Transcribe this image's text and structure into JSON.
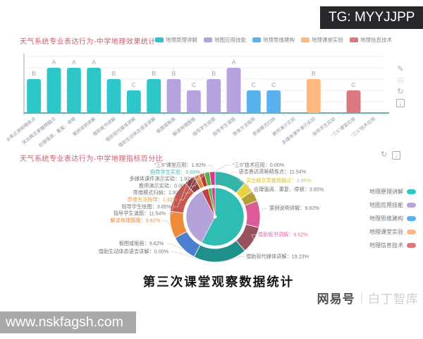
{
  "watermarks": {
    "tg": "TG: MYYJJPP",
    "site": "www.nskfagsh.com",
    "brand_primary": "网易号",
    "brand_divider": "|",
    "brand_secondary": "白丁智库"
  },
  "caption": "第三次课堂观察数据统计",
  "icons": {
    "edit": "✎",
    "data_view": "▤",
    "refresh": "↻",
    "save_arrow": "↓"
  },
  "bar_section": {
    "title": "天气系统专业表达行为-中学地理效果统计"
  },
  "pie_section": {
    "title": "天气系统专业表达行为-中学地理指标百分比"
  },
  "legend": [
    {
      "label": "地理原理讲解",
      "color": "#2ec7c9"
    },
    {
      "label": "地图应用技能",
      "color": "#b6a2de"
    },
    {
      "label": "地理思维建构",
      "color": "#5ab1ef"
    },
    {
      "label": "地理课堂实验",
      "color": "#ffb980"
    },
    {
      "label": "地理信息技术",
      "color": "#d87a80"
    }
  ],
  "chart_data": [
    {
      "type": "bar",
      "title": "天气系统专业表达行为-中学地理效果统计",
      "xlabel": "",
      "ylabel": "",
      "ylim": [
        0,
        5
      ],
      "grid": true,
      "legend_position": "top",
      "grade_scale": {
        "A": 4,
        "B": 3,
        "C": 2
      },
      "categories": [
        "语言表达清晰精炼点",
        "突出概念掌握精髓点",
        "合理强调、重复、停顿",
        "案例说明讲解",
        "借助板书讲解",
        "借助现代媒体讲解",
        "借助生动体态语言讲解",
        "板图或板画",
        "解读地理图像",
        "指导学生绘图",
        "指导学生读图",
        "思维方法指导",
        "思维模式归纳",
        "教师演示实验",
        "多媒体课件演示实验",
        "指导学生实验",
        "“三S”课堂应用",
        "“三S”技术应用"
      ],
      "grades": [
        "B",
        "A",
        "A",
        "A",
        "B",
        "C",
        "B",
        "B",
        "C",
        "B",
        "A",
        "C",
        "C",
        null,
        "B",
        null,
        "C",
        null
      ],
      "values": [
        3,
        4,
        4,
        4,
        3,
        2,
        3,
        3,
        2,
        3,
        4,
        2,
        2,
        0,
        3,
        0,
        2,
        0
      ],
      "colors": [
        "#2ec7c9",
        "#2ec7c9",
        "#2ec7c9",
        "#2ec7c9",
        "#2ec7c9",
        "#2ec7c9",
        "#2ec7c9",
        "#b6a2de",
        "#b6a2de",
        "#b6a2de",
        "#b6a2de",
        "#5ab1ef",
        "#5ab1ef",
        "#ffb980",
        "#ffb980",
        "#ffb980",
        "#d87a80",
        "#d87a80"
      ]
    },
    {
      "type": "pie",
      "title": "天气系统专业表达行为-中学地理指标百分比",
      "legend_position": "right",
      "slices": [
        {
          "label": "语言表达清晰精炼点",
          "value": 11.54,
          "display": "11.54%",
          "color": "#35b5a9",
          "label_color": "#757575"
        },
        {
          "label": "突出概念掌握精髓点",
          "value": 3.85,
          "display": "3.85%",
          "color": "#e6d33d",
          "label_color": "#d9c52f"
        },
        {
          "label": "合理强调、重复、停顿",
          "value": 3.85,
          "display": "3.85%",
          "color": "#b0a135",
          "label_color": "#757575"
        },
        {
          "label": "案例说明讲解",
          "value": 9.62,
          "display": "9.62%",
          "color": "#de5b9a",
          "label_color": "#757575"
        },
        {
          "label": "借助板书讲解",
          "value": 9.62,
          "display": "9.62%",
          "color": "#97525e",
          "label_color": "#e06ba8"
        },
        {
          "label": "借助现代媒体讲解",
          "value": 19.23,
          "display": "19.23%",
          "color": "#1f8f89",
          "label_color": "#757575"
        },
        {
          "label": "借助生动体态语言讲解",
          "value": 0,
          "display": "0.00%",
          "color": "#2ec7c9",
          "label_color": "#757575"
        },
        {
          "label": "板图或板画",
          "value": 9.62,
          "display": "9.62%",
          "color": "#4d7fd0",
          "label_color": "#757575"
        },
        {
          "label": "解读地理图像",
          "value": 9.62,
          "display": "9.62%",
          "color": "#ef8a3a",
          "label_color": "#ef8a3a"
        },
        {
          "label": "指导学生读图",
          "value": 11.54,
          "display": "11.54%",
          "color": "#c9574f",
          "label_color": "#757575"
        },
        {
          "label": "指导学生绘图",
          "value": 3.85,
          "display": "3.85%",
          "color": "#8e3d43",
          "label_color": "#757575"
        },
        {
          "label": "思维方法指导",
          "value": 1.92,
          "display": "1.92%",
          "color": "#d8893a",
          "label_color": "#e39a3d"
        },
        {
          "label": "思维模式归纳",
          "value": 1.92,
          "display": "1.92%",
          "color": "#c23531",
          "label_color": "#757575"
        },
        {
          "label": "教师演示实验",
          "value": 0,
          "display": "0.00%",
          "color": "#999999",
          "label_color": "#757575"
        },
        {
          "label": "多媒体课件演示实验",
          "value": 1.92,
          "display": "1.92%",
          "color": "#56b34a",
          "label_color": "#757575"
        },
        {
          "label": "指导学生实验",
          "value": 0,
          "display": "0.00%",
          "color": "#4bb3ab",
          "label_color": "#4bb3ab"
        },
        {
          "label": "“三S”课堂应用",
          "value": 1.92,
          "display": "1.92%",
          "color": "#d23a8d",
          "label_color": "#757575"
        },
        {
          "label": "“三S”技术应用",
          "value": 0,
          "display": "0.00%",
          "color": "#888888",
          "label_color": "#757575"
        }
      ],
      "inner_slices": [
        {
          "label": "地理原理讲解",
          "value": 57.71,
          "color": "#2fbdb3"
        },
        {
          "label": "地图应用技能",
          "value": 34.63,
          "color": "#b3a3d8"
        },
        {
          "label": "地理思维建构",
          "value": 3.84,
          "color": "#bf4040"
        },
        {
          "label": "地理课堂实验",
          "value": 1.92,
          "color": "#5cb54b"
        },
        {
          "label": "地理信息技术",
          "value": 1.92,
          "color": "#cf3a8e"
        }
      ]
    }
  ]
}
